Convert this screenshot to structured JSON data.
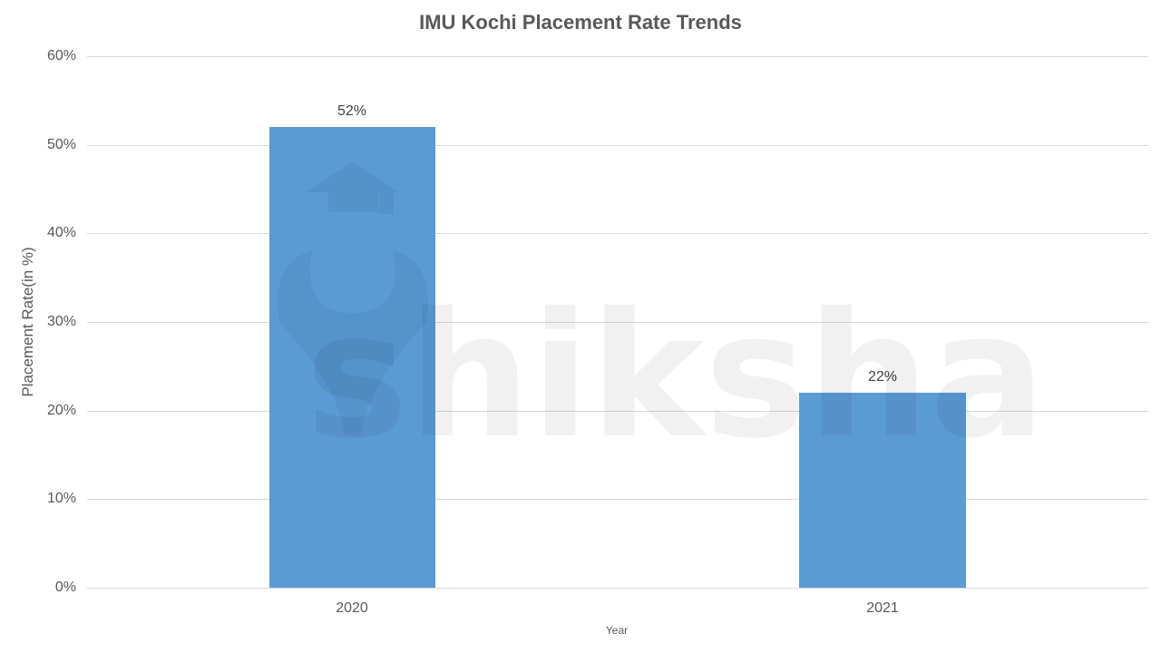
{
  "chart_data": {
    "type": "bar",
    "title": "IMU Kochi Placement Rate Trends",
    "xlabel": "Year",
    "ylabel": "Placement Rate(in %)",
    "categories": [
      "2020",
      "2021"
    ],
    "values": [
      52,
      22
    ],
    "data_labels": [
      "52%",
      "22%"
    ],
    "ylim": [
      0,
      60
    ],
    "yticks": [
      "0%",
      "10%",
      "20%",
      "30%",
      "40%",
      "50%",
      "60%"
    ],
    "grid": true,
    "legend": null,
    "bar_color": "#5B9BD5",
    "watermark": "shiksha"
  }
}
